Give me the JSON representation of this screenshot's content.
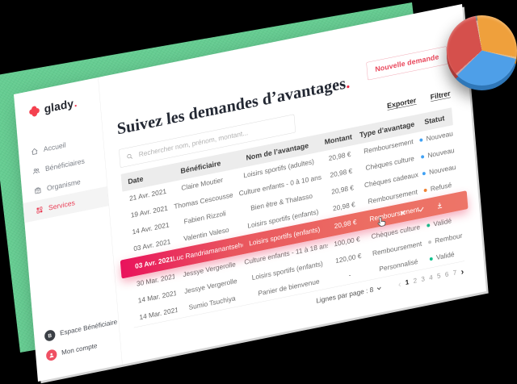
{
  "app": {
    "logo_text": "glady",
    "logo_dot": "."
  },
  "sidebar": {
    "items": [
      {
        "id": "accueil",
        "label": "Accueil",
        "icon": "home-icon",
        "active": false
      },
      {
        "id": "beneficiaires",
        "label": "Bénéficiaires",
        "icon": "people-icon",
        "active": false
      },
      {
        "id": "organisme",
        "label": "Organisme",
        "icon": "building-icon",
        "active": false
      },
      {
        "id": "services",
        "label": "Services",
        "icon": "services-icon",
        "active": true
      }
    ],
    "footer_items": [
      {
        "id": "espace-beneficiaire",
        "label": "Espace Bénéficiaire",
        "avatar_letter": "B"
      },
      {
        "id": "mon-compte",
        "label": "Mon compte",
        "avatar_letter": ""
      }
    ]
  },
  "header": {
    "new_request_label": "Nouvelle demande",
    "title": "Suivez les demandes d’avantages",
    "title_dot": ".",
    "export_label": "Exporter",
    "filter_label": "Filtrer"
  },
  "search": {
    "placeholder": "Rechercher nom, prénom, montant..."
  },
  "table": {
    "columns": [
      "Date",
      "Bénéficiaire",
      "Nom de l’avantage",
      "Montant",
      "Type d’avantage",
      "Statut"
    ],
    "rows": [
      {
        "date": "21 Avr. 2021",
        "beneficiary": "Claire Moutier",
        "benefit": "Loisirs sportifs (adultes)",
        "amount": "20,98 €",
        "type": "Remboursement",
        "status": "Nouveau",
        "highlighted": false
      },
      {
        "date": "19 Avr. 2021",
        "beneficiary": "Thomas Cescousse",
        "benefit": "Culture enfants - 0 à 10 ans",
        "amount": "20,98 €",
        "type": "Chèques culture",
        "status": "Nouveau",
        "highlighted": false
      },
      {
        "date": "14 Avr. 2021",
        "beneficiary": "Fabien Rizzoli",
        "benefit": "Bien être & Thalasso",
        "amount": "20,98 €",
        "type": "Chèques cadeaux",
        "status": "Nouveau",
        "highlighted": false
      },
      {
        "date": "03 Avr. 2021",
        "beneficiary": "Valentin Valeso",
        "benefit": "Loisirs sportifs (enfants)",
        "amount": "20,98 €",
        "type": "Remboursement",
        "status": "Refusé",
        "highlighted": false
      },
      {
        "date": "03 Avr. 2021",
        "beneficiary": "Luc Randriamanantseheno",
        "benefit": "Loisirs sportifs (enfants)",
        "amount": "20,98 €",
        "type": "Remboursement",
        "status": "",
        "highlighted": true
      },
      {
        "date": "30 Mar. 2021",
        "beneficiary": "Jessye Vergerolle",
        "benefit": "Culture enfants - 11 à 18 ans",
        "amount": "100,00 €",
        "type": "Chèques culture",
        "status": "Validé",
        "highlighted": false
      },
      {
        "date": "14 Mar. 2021",
        "beneficiary": "Jessye Vergerolle",
        "benefit": "Loisirs sportifs (enfants)",
        "amount": "120,00 €",
        "type": "Remboursement",
        "status": "Remboursé",
        "highlighted": false
      },
      {
        "date": "14 Mar. 2021",
        "beneficiary": "Sumio Tsuchiya",
        "benefit": "Panier de bienvenue",
        "amount": "-",
        "type": "Personnalisé",
        "status": "Validé",
        "highlighted": false
      }
    ],
    "footer": {
      "rows_per_page_label": "Lignes par page : 8",
      "prev_icon": "‹",
      "next_icon": "›",
      "pages": [
        "1",
        "2",
        "3",
        "4",
        "5",
        "6",
        "7"
      ],
      "active_page": "1"
    }
  },
  "status_colors": {
    "Nouveau": "#3fa1f4",
    "Refusé": "#f08233",
    "Validé": "#10c18d",
    "Remboursé": "#c6c6c6"
  },
  "row_actions": [
    "close-icon",
    "check-icon",
    "download-icon"
  ],
  "pie_chart": {
    "start_deg": -8,
    "slices": [
      {
        "name": "orange",
        "color": "#efa03c",
        "dark": "#bc7a25",
        "deg": 112
      },
      {
        "name": "blue",
        "color": "#4e9fe8",
        "dark": "#2f77b8",
        "deg": 124
      },
      {
        "name": "red",
        "color": "#d5504c",
        "dark": "#a93b39",
        "deg": 124
      }
    ]
  },
  "colors": {
    "brand_red": "#ef3e55",
    "sheet_green": "#66cd92",
    "highlight_gradient_start": "#e9125c",
    "highlight_gradient_end": "#ed7568"
  }
}
